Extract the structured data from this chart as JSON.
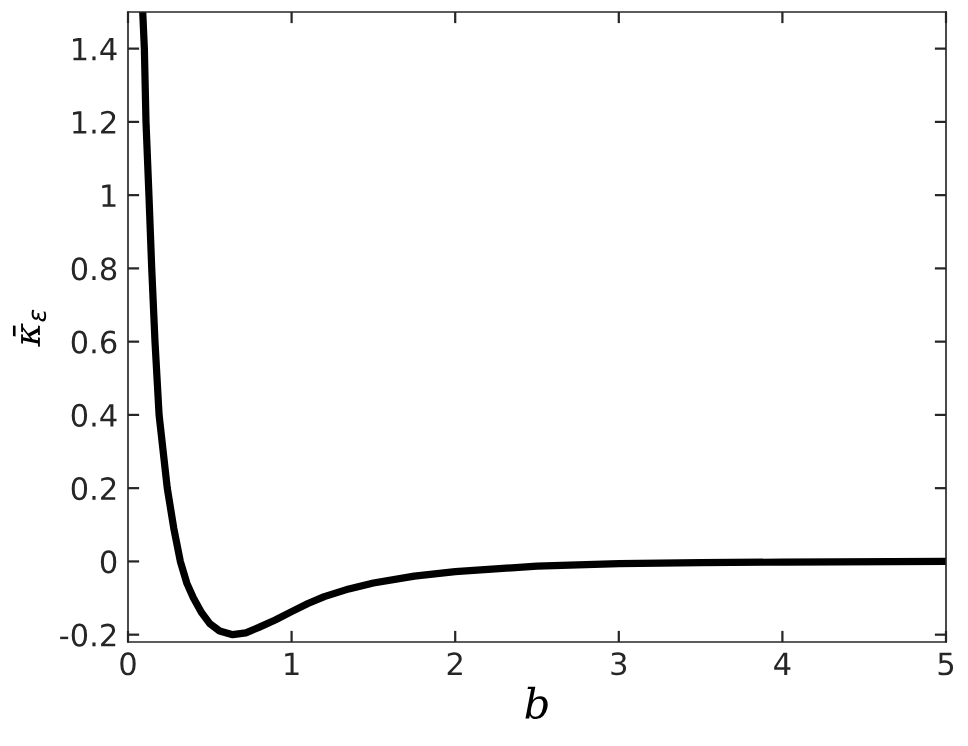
{
  "chart_data": {
    "type": "line",
    "xlabel": "b",
    "ylabel": "κ̄$_{ε}$",
    "x": [
      0.09,
      0.1,
      0.11,
      0.128,
      0.145,
      0.165,
      0.19,
      0.24,
      0.28,
      0.32,
      0.36,
      0.4,
      0.45,
      0.5,
      0.56,
      0.64,
      0.72,
      0.8,
      0.9,
      1.0,
      1.1,
      1.2,
      1.35,
      1.5,
      1.75,
      2.0,
      2.5,
      3.0,
      3.5,
      4.0,
      5.0
    ],
    "series": [
      {
        "color": "#000000",
        "values": [
          1.5,
          1.4,
          1.2,
          1.0,
          0.8,
          0.6,
          0.4,
          0.2,
          0.09,
          0.0,
          -0.06,
          -0.1,
          -0.14,
          -0.17,
          -0.19,
          -0.2,
          -0.195,
          -0.18,
          -0.16,
          -0.137,
          -0.115,
          -0.096,
          -0.075,
          -0.059,
          -0.04,
          -0.028,
          -0.013,
          -0.006,
          -0.003,
          -0.002,
          0.0
        ]
      }
    ],
    "xlim": [
      0,
      5
    ],
    "ylim": [
      -0.22,
      1.5
    ],
    "xticks": [
      0,
      1,
      2,
      3,
      4,
      5
    ],
    "yticks": [
      -0.2,
      0,
      0.2,
      0.4,
      0.6,
      0.8,
      1,
      1.2,
      1.4
    ],
    "grid": false,
    "legend": false,
    "marker": "none",
    "line_style": "solid"
  }
}
